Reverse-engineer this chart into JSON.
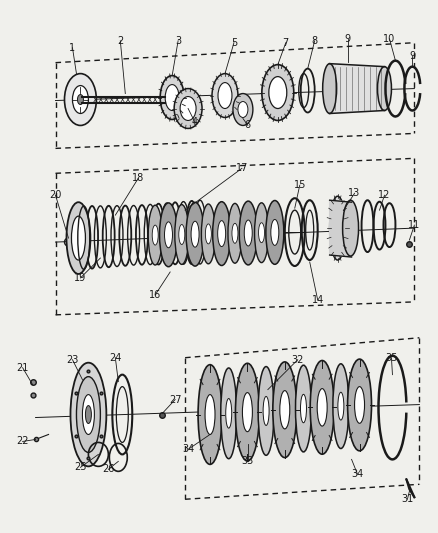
{
  "bg_color": "#f0f0ec",
  "line_color": "#1a1a1a",
  "text_color": "#1a1a1a",
  "fig_width": 4.38,
  "fig_height": 5.33,
  "dpi": 100
}
